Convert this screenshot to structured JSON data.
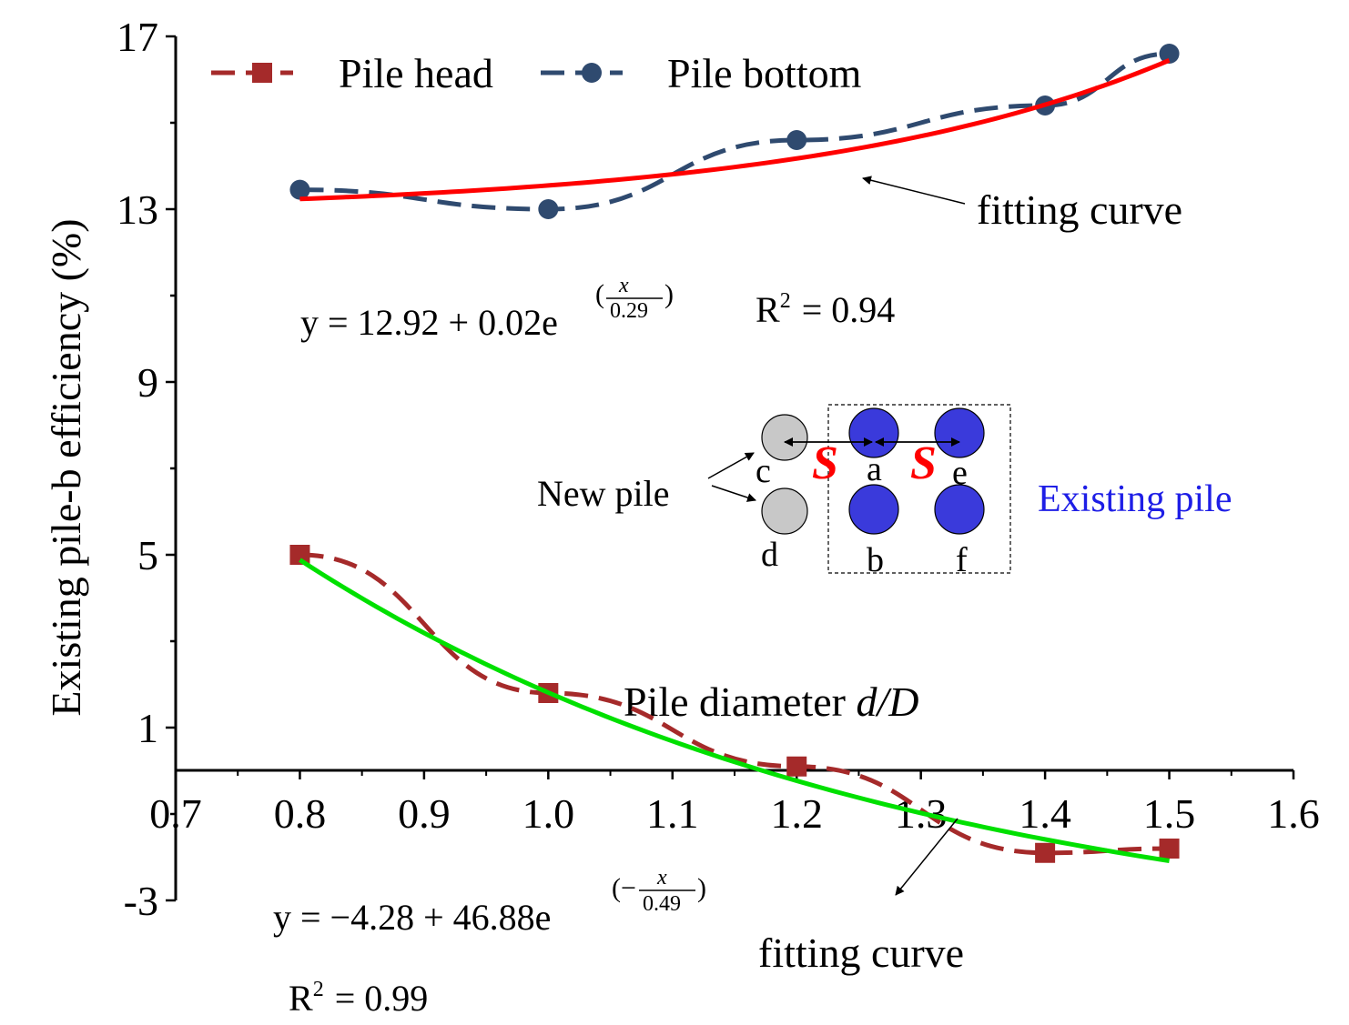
{
  "chart_data": {
    "type": "line",
    "xlabel": "Pile diameter d/D",
    "xlabel_plain": "Pile diameter ",
    "xlabel_italic": "d/D",
    "ylabel": "Existing pile-b efficiency (%)",
    "xlim": [
      0.7,
      1.6
    ],
    "ylim": [
      -3,
      17
    ],
    "xticks": [
      "0.7",
      "0.8",
      "0.9",
      "1.0",
      "1.1",
      "1.2",
      "1.3",
      "1.4",
      "1.5",
      "1.6"
    ],
    "yticks": [
      "-3",
      "1",
      "5",
      "9",
      "13",
      "17"
    ],
    "series": [
      {
        "name": "Pile head",
        "color": "#A52A2A",
        "marker": "square",
        "x": [
          0.8,
          1.0,
          1.2,
          1.4,
          1.5
        ],
        "y": [
          5.0,
          1.8,
          0.1,
          -1.9,
          -1.8
        ]
      },
      {
        "name": "Pile bottom",
        "color": "#2F4A6F",
        "marker": "circle",
        "x": [
          0.8,
          1.0,
          1.2,
          1.4,
          1.5
        ],
        "y": [
          13.45,
          13.0,
          14.6,
          15.4,
          16.6
        ]
      }
    ],
    "fits": [
      {
        "name": "Pile bottom fit",
        "color": "#FF0000",
        "a": 12.92,
        "b": 0.02,
        "t": 0.29,
        "equation_prefix": "y = 12.92 + 0.02e",
        "exponent_numerator": "x",
        "exponent_denominator": "0.29",
        "r2_value": "= 0.94"
      },
      {
        "name": "Pile head fit",
        "color": "#00E000",
        "a": -4.28,
        "b": 46.88,
        "t": -0.49,
        "equation_prefix": "y = −4.28 + 46.88e",
        "exponent_numerator": "x",
        "exponent_denominator": "0.49",
        "r2_value": "= 0.99"
      }
    ],
    "annotations": {
      "fitting_curve_top": "fitting curve",
      "fitting_curve_bottom": "fitting curve",
      "r2_symbol": "R",
      "r2_exp": "2"
    },
    "inset": {
      "new_pile_label": "New pile",
      "existing_pile_label": "Existing pile",
      "spacing_label": "S",
      "pile_letters": [
        "c",
        "a",
        "e",
        "d",
        "b",
        "f"
      ],
      "new_pile_color": "#C8C8C8",
      "existing_pile_color": "#3A3ADB",
      "existing_label_color": "#1E1EE6",
      "spacing_color": "#FF0000"
    }
  }
}
